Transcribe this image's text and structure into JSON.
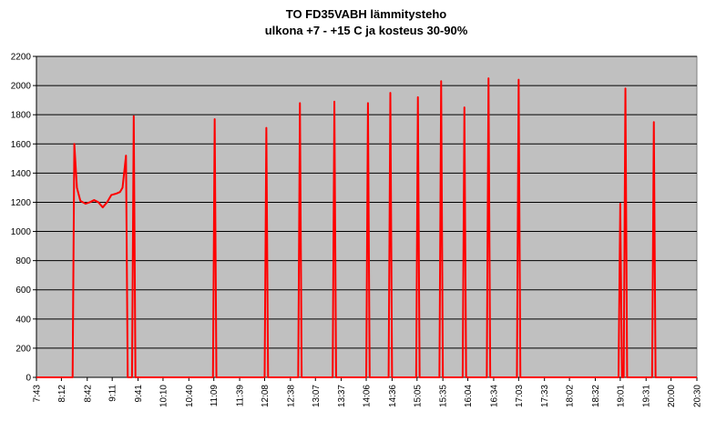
{
  "chart_data": {
    "type": "line",
    "title": "TO FD35VABH lämmitysteho",
    "subtitle": "ulkona +7 - +15 C ja kosteus 30-90%",
    "x": [
      463,
      505,
      507,
      510,
      514,
      520,
      525,
      530,
      535,
      540,
      545,
      550,
      556,
      560,
      563,
      567,
      569,
      574,
      576,
      578,
      668,
      670,
      672,
      728,
      730,
      732,
      767,
      769,
      771,
      807,
      809,
      811,
      846,
      848,
      850,
      872,
      874,
      876,
      904,
      906,
      908,
      931,
      933,
      935,
      958,
      960,
      962,
      986,
      988,
      990,
      1021,
      1023,
      1025,
      1139,
      1141,
      1143,
      1145,
      1147,
      1149,
      1178,
      1180,
      1182,
      1230
    ],
    "series": [
      {
        "color": "#ff0000",
        "values": [
          0,
          0,
          1600,
          1300,
          1210,
          1190,
          1200,
          1215,
          1200,
          1165,
          1200,
          1250,
          1260,
          1270,
          1300,
          1520,
          0,
          0,
          1790,
          0,
          0,
          1770,
          0,
          0,
          1710,
          0,
          0,
          1880,
          0,
          0,
          1890,
          0,
          0,
          1880,
          0,
          0,
          1950,
          0,
          0,
          1920,
          0,
          0,
          2030,
          0,
          0,
          1850,
          0,
          0,
          2050,
          0,
          0,
          2040,
          0,
          0,
          1190,
          0,
          0,
          1980,
          0,
          0,
          1750,
          0,
          0
        ]
      }
    ],
    "xlim": [
      463,
      1230
    ],
    "xticks": [
      {
        "value": 463,
        "label": "7:43"
      },
      {
        "value": 492,
        "label": "8:12"
      },
      {
        "value": 522,
        "label": "8:42"
      },
      {
        "value": 551,
        "label": "9:11"
      },
      {
        "value": 581,
        "label": "9:41"
      },
      {
        "value": 610,
        "label": "10:10"
      },
      {
        "value": 640,
        "label": "10:40"
      },
      {
        "value": 669,
        "label": "11:09"
      },
      {
        "value": 699,
        "label": "11:39"
      },
      {
        "value": 728,
        "label": "12:08"
      },
      {
        "value": 758,
        "label": "12:38"
      },
      {
        "value": 787,
        "label": "13:07"
      },
      {
        "value": 817,
        "label": "13:37"
      },
      {
        "value": 846,
        "label": "14:06"
      },
      {
        "value": 876,
        "label": "14:36"
      },
      {
        "value": 905,
        "label": "15:05"
      },
      {
        "value": 935,
        "label": "15:35"
      },
      {
        "value": 964,
        "label": "16:04"
      },
      {
        "value": 994,
        "label": "16:34"
      },
      {
        "value": 1023,
        "label": "17:03"
      },
      {
        "value": 1053,
        "label": "17:33"
      },
      {
        "value": 1082,
        "label": "18:02"
      },
      {
        "value": 1112,
        "label": "18:32"
      },
      {
        "value": 1141,
        "label": "19:01"
      },
      {
        "value": 1171,
        "label": "19:31"
      },
      {
        "value": 1200,
        "label": "20:00"
      },
      {
        "value": 1230,
        "label": "20:30"
      }
    ],
    "ylim": [
      0,
      2200
    ],
    "yticks": [
      0,
      200,
      400,
      600,
      800,
      1000,
      1200,
      1400,
      1600,
      1800,
      2000,
      2200
    ],
    "grid": true
  }
}
